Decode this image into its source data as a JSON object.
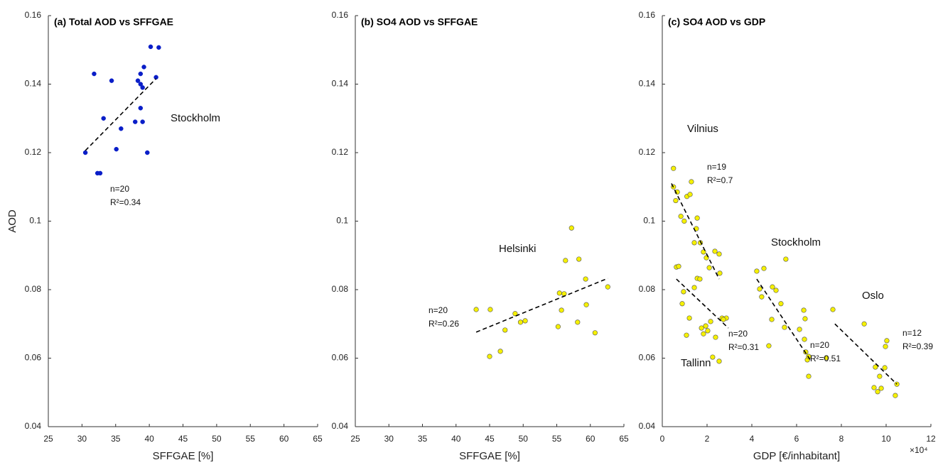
{
  "chart_data": [
    {
      "type": "scatter",
      "title": "(a) Total AOD vs SFFGAE",
      "xlabel": "SFFGAE [%]",
      "ylabel": "AOD",
      "xlim": [
        25,
        65
      ],
      "xticks": [
        25,
        30,
        35,
        40,
        45,
        50,
        55,
        60,
        65
      ],
      "ylim": [
        0.04,
        0.16
      ],
      "yticks": [
        0.04,
        0.06,
        0.08,
        0.1,
        0.12,
        0.14,
        0.16
      ],
      "series": [
        {
          "name": "Stockholm",
          "color": "#0a1ec8",
          "stats": [
            "n=20",
            "R²=0.34"
          ],
          "x": [
            31.8,
            34.4,
            40.2,
            41.4,
            39.2,
            38.7,
            38.7,
            39.0,
            38.3,
            41.0,
            38.7,
            37.9,
            39.0,
            33.2,
            35.8,
            30.5,
            35.1,
            39.7,
            32.3,
            32.7
          ],
          "values": [
            0.143,
            0.141,
            0.1509,
            0.1507,
            0.145,
            0.143,
            0.14,
            0.139,
            0.141,
            0.142,
            0.133,
            0.129,
            0.129,
            0.13,
            0.127,
            0.12,
            0.121,
            0.12,
            0.114,
            0.114
          ],
          "fit": {
            "x": [
              30.5,
              41.0
            ],
            "values": [
              0.1206,
              0.1416
            ]
          }
        }
      ]
    },
    {
      "type": "scatter",
      "title": "(b) SO4 AOD vs SFFGAE",
      "xlabel": "SFFGAE [%]",
      "xlim": [
        25,
        65
      ],
      "xticks": [
        25,
        30,
        35,
        40,
        45,
        50,
        55,
        60,
        65
      ],
      "ylim": [
        0.04,
        0.16
      ],
      "yticks": [
        0.04,
        0.06,
        0.08,
        0.1,
        0.12,
        0.14,
        0.16
      ],
      "series": [
        {
          "name": "Helsinki",
          "color": "#f5f000",
          "stats": [
            "n=20",
            "R²=0.26"
          ],
          "x": [
            43.0,
            45.1,
            45.0,
            46.6,
            47.3,
            48.8,
            49.6,
            50.3,
            55.2,
            55.4,
            55.7,
            56.1,
            56.3,
            57.2,
            58.1,
            58.3,
            59.3,
            59.4,
            60.7,
            62.6
          ],
          "values": [
            0.0742,
            0.0742,
            0.0605,
            0.062,
            0.0682,
            0.073,
            0.0705,
            0.0709,
            0.0692,
            0.079,
            0.074,
            0.0788,
            0.0885,
            0.098,
            0.0705,
            0.0889,
            0.0831,
            0.0756,
            0.0674,
            0.0808
          ],
          "fit": {
            "x": [
              43.0,
              62.6
            ],
            "values": [
              0.0676,
              0.0833
            ]
          }
        }
      ]
    },
    {
      "type": "scatter",
      "title": "(c) SO4 AOD vs GDP",
      "xlabel": "GDP [€/inhabitant]",
      "x_exponent": "×10⁴",
      "xlim": [
        0,
        12
      ],
      "xticks": [
        0,
        2,
        4,
        6,
        8,
        10,
        12
      ],
      "ylim": [
        0.04,
        0.16
      ],
      "yticks": [
        0.04,
        0.06,
        0.08,
        0.1,
        0.12,
        0.14,
        0.16
      ],
      "series": [
        {
          "name": "Vilnius",
          "color": "#f5f000",
          "stats": [
            "n=19",
            "R²=0.7"
          ],
          "x": [
            0.5,
            0.5,
            0.67,
            0.6,
            0.83,
            0.98,
            1.1,
            1.24,
            1.3,
            1.43,
            1.52,
            1.56,
            1.7,
            1.84,
            1.97,
            2.1,
            2.35,
            2.54,
            2.57
          ],
          "values": [
            0.1154,
            0.11,
            0.1085,
            0.106,
            0.1014,
            0.1,
            0.1072,
            0.1078,
            0.1115,
            0.0937,
            0.0978,
            0.1009,
            0.0937,
            0.091,
            0.0893,
            0.0864,
            0.0912,
            0.0904,
            0.0848
          ],
          "fit": {
            "x": [
              0.41,
              2.54
            ],
            "values": [
              0.111,
              0.0831
            ]
          }
        },
        {
          "name": "Tallinn",
          "color": "#f5f000",
          "stats": [
            "n=20",
            "R²=0.31"
          ],
          "x": [
            0.63,
            0.73,
            0.89,
            0.95,
            1.08,
            1.21,
            1.43,
            1.56,
            1.68,
            1.75,
            1.84,
            1.94,
            2.03,
            2.16,
            2.25,
            2.38,
            2.54,
            2.67,
            2.86,
            2.73
          ],
          "values": [
            0.0866,
            0.0868,
            0.0759,
            0.0794,
            0.0667,
            0.0717,
            0.0806,
            0.0833,
            0.0831,
            0.0688,
            0.0671,
            0.0694,
            0.068,
            0.0707,
            0.0603,
            0.0661,
            0.0591,
            0.0717,
            0.0717,
            0.0713
          ],
          "fit": {
            "x": [
              0.63,
              2.95
            ],
            "values": [
              0.0831,
              0.0688
            ]
          }
        },
        {
          "name": "Stockholm",
          "color": "#f5f000",
          "stats": [
            "n=20",
            "R²=0.51"
          ],
          "x": [
            4.22,
            4.35,
            4.44,
            4.54,
            4.76,
            4.89,
            4.92,
            5.08,
            5.3,
            5.46,
            5.52,
            6.13,
            6.32,
            6.35,
            6.38,
            6.41,
            6.48,
            6.54,
            6.54,
            7.33
          ],
          "values": [
            0.0854,
            0.0802,
            0.0779,
            0.0862,
            0.0636,
            0.0713,
            0.0808,
            0.0798,
            0.0759,
            0.069,
            0.0889,
            0.0684,
            0.074,
            0.0655,
            0.0715,
            0.0618,
            0.0595,
            0.0605,
            0.0547,
            0.0601
          ],
          "fit": {
            "x": [
              4.22,
              6.63
            ],
            "values": [
              0.0831,
              0.0593
            ]
          }
        },
        {
          "name": "Oslo",
          "color": "#f5f000",
          "stats": [
            "n=12",
            "R²=0.39"
          ],
          "x": [
            7.62,
            9.02,
            9.52,
            9.46,
            9.62,
            9.78,
            9.71,
            9.94,
            9.97,
            10.03,
            10.41,
            10.48
          ],
          "values": [
            0.0742,
            0.07,
            0.0574,
            0.0514,
            0.0502,
            0.0512,
            0.0547,
            0.0572,
            0.0634,
            0.0651,
            0.0491,
            0.0524
          ],
          "fit": {
            "x": [
              7.71,
              10.48
            ],
            "values": [
              0.07,
              0.0524
            ]
          }
        }
      ]
    }
  ]
}
